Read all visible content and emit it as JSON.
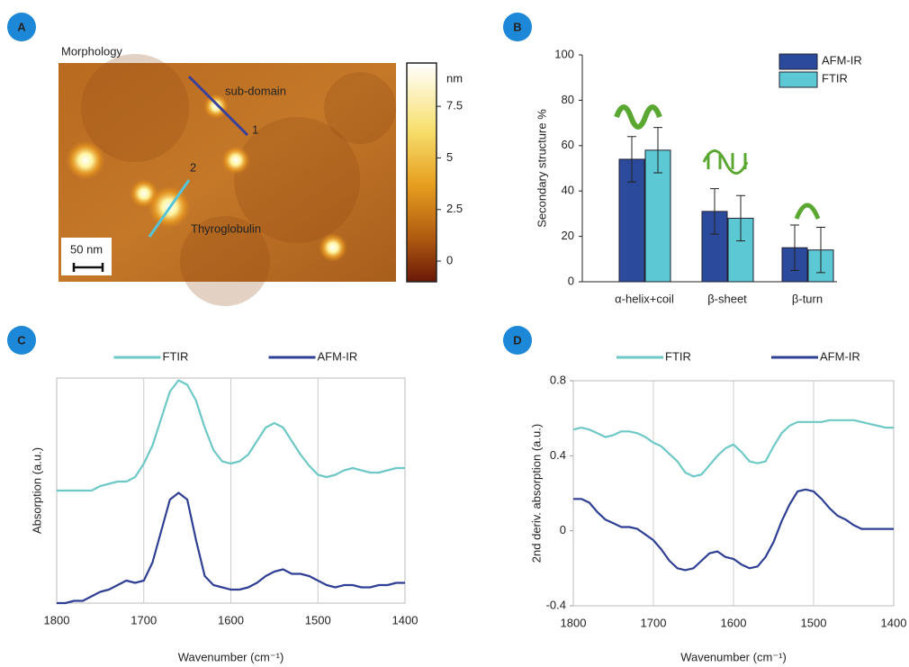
{
  "chart_data": [
    {
      "type": "image",
      "label": "A",
      "title": "Morphology",
      "annotations": [
        "sub-domain",
        "1",
        "2",
        "Thyroglobulin",
        "50 nm"
      ],
      "colorbar": {
        "label": "nm",
        "lim": [
          -1,
          9.6
        ],
        "ticks": [
          7.5,
          5,
          2.5,
          0
        ]
      }
    },
    {
      "type": "bar",
      "label": "B",
      "y_label": "Secondary structure %",
      "categories": [
        "α-helix+coil",
        "β-sheet",
        "β-turn"
      ],
      "series": [
        {
          "name": "AFM-IR",
          "color": "#2b4a9b",
          "values": [
            54,
            31,
            15
          ],
          "errors": [
            10,
            10,
            10
          ]
        },
        {
          "name": "FTIR",
          "color": "#5bc8d4",
          "values": [
            58,
            28,
            14
          ],
          "errors": [
            10,
            10,
            10
          ]
        }
      ],
      "ylim": [
        0,
        100
      ],
      "yticks": [
        0,
        20,
        40,
        60,
        80,
        100
      ],
      "legend": "top-right"
    },
    {
      "type": "line",
      "label": "C",
      "x_label": "Wavenumber (cm⁻¹)",
      "y_label": "Absorption (a.u.)",
      "xlim": [
        1800,
        1400
      ],
      "xticks": [
        1800,
        1700,
        1600,
        1500,
        1400
      ],
      "ylim": [
        0,
        1
      ],
      "grid": "x",
      "legend": "top",
      "x": [
        1800,
        1790,
        1780,
        1770,
        1760,
        1750,
        1740,
        1730,
        1720,
        1710,
        1700,
        1690,
        1680,
        1670,
        1660,
        1650,
        1640,
        1630,
        1620,
        1610,
        1600,
        1590,
        1580,
        1570,
        1560,
        1550,
        1540,
        1530,
        1520,
        1510,
        1500,
        1490,
        1480,
        1470,
        1460,
        1450,
        1440,
        1430,
        1420,
        1410,
        1400
      ],
      "series": [
        {
          "name": "FTIR",
          "color": "#6ec9c6",
          "values": [
            0.5,
            0.5,
            0.5,
            0.5,
            0.5,
            0.52,
            0.53,
            0.54,
            0.54,
            0.56,
            0.62,
            0.7,
            0.82,
            0.94,
            0.99,
            0.97,
            0.9,
            0.78,
            0.68,
            0.63,
            0.62,
            0.63,
            0.66,
            0.72,
            0.78,
            0.8,
            0.78,
            0.72,
            0.66,
            0.61,
            0.57,
            0.56,
            0.57,
            0.59,
            0.6,
            0.59,
            0.58,
            0.58,
            0.59,
            0.6,
            0.6
          ]
        },
        {
          "name": "AFM-IR",
          "color": "#2e3f94",
          "values": [
            0,
            0,
            0.01,
            0.01,
            0.03,
            0.05,
            0.06,
            0.08,
            0.1,
            0.09,
            0.1,
            0.18,
            0.32,
            0.46,
            0.49,
            0.46,
            0.28,
            0.12,
            0.08,
            0.07,
            0.06,
            0.06,
            0.07,
            0.09,
            0.12,
            0.14,
            0.15,
            0.13,
            0.13,
            0.12,
            0.1,
            0.08,
            0.07,
            0.08,
            0.08,
            0.07,
            0.07,
            0.08,
            0.08,
            0.09,
            0.09
          ]
        }
      ]
    },
    {
      "type": "line",
      "label": "D",
      "x_label": "Wavenumber (cm⁻¹)",
      "y_label": "2nd deriv. absorption (a.u.)",
      "xlim": [
        1800,
        1400
      ],
      "xticks": [
        1800,
        1700,
        1600,
        1500,
        1400
      ],
      "ylim": [
        -0.4,
        0.8
      ],
      "yticks": [
        -0.4,
        0,
        0.4,
        0.8
      ],
      "grid": "x",
      "legend": "top",
      "x": [
        1800,
        1790,
        1780,
        1770,
        1760,
        1750,
        1740,
        1730,
        1720,
        1710,
        1700,
        1690,
        1680,
        1670,
        1660,
        1650,
        1640,
        1630,
        1620,
        1610,
        1600,
        1590,
        1580,
        1570,
        1560,
        1550,
        1540,
        1530,
        1520,
        1510,
        1500,
        1490,
        1480,
        1470,
        1460,
        1450,
        1440,
        1430,
        1420,
        1410,
        1400
      ],
      "series": [
        {
          "name": "FTIR",
          "color": "#6ec9c6",
          "values": [
            0.54,
            0.55,
            0.54,
            0.52,
            0.5,
            0.51,
            0.53,
            0.53,
            0.52,
            0.5,
            0.47,
            0.45,
            0.41,
            0.37,
            0.31,
            0.29,
            0.3,
            0.35,
            0.4,
            0.44,
            0.46,
            0.42,
            0.37,
            0.36,
            0.37,
            0.45,
            0.52,
            0.56,
            0.58,
            0.58,
            0.58,
            0.58,
            0.59,
            0.59,
            0.59,
            0.59,
            0.58,
            0.57,
            0.56,
            0.55,
            0.55
          ]
        },
        {
          "name": "AFM-IR",
          "color": "#2e3f94",
          "values": [
            0.17,
            0.17,
            0.15,
            0.1,
            0.06,
            0.04,
            0.02,
            0.02,
            0.01,
            -0.02,
            -0.05,
            -0.1,
            -0.16,
            -0.2,
            -0.21,
            -0.2,
            -0.16,
            -0.12,
            -0.11,
            -0.14,
            -0.15,
            -0.18,
            -0.2,
            -0.19,
            -0.14,
            -0.06,
            0.05,
            0.14,
            0.21,
            0.22,
            0.21,
            0.17,
            0.12,
            0.08,
            0.06,
            0.03,
            0.01,
            0.01,
            0.01,
            0.01,
            0.01
          ]
        }
      ]
    }
  ]
}
